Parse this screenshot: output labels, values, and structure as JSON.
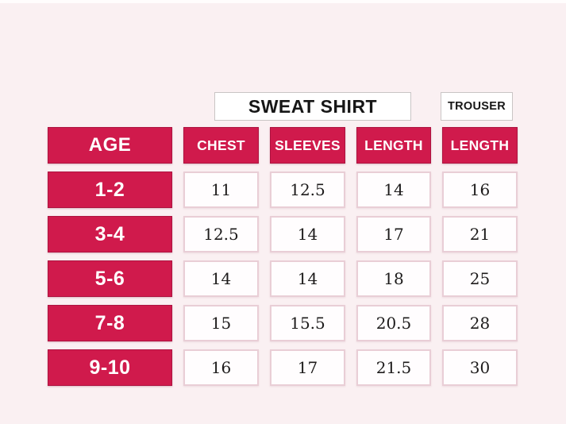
{
  "colors": {
    "background": "#faf0f2",
    "accent": "#d01a4c",
    "accent_border": "#ad1340",
    "value_cell_bg": "#fffdfe",
    "value_cell_border": "#e9ced6",
    "title_box_border": "#c9c5c5",
    "title_text": "#161616",
    "value_text": "#1d1b1b"
  },
  "titles": {
    "sweatshirt": "SWEAT SHIRT",
    "trouser": "TROUSER"
  },
  "table": {
    "headers": [
      "AGE",
      "CHEST",
      "SLEEVES",
      "LENGTH",
      "LENGTH"
    ],
    "rows": [
      {
        "age": "1-2",
        "values": [
          "11",
          "12.5",
          "14",
          "16"
        ]
      },
      {
        "age": "3-4",
        "values": [
          "12.5",
          "14",
          "17",
          "21"
        ]
      },
      {
        "age": "5-6",
        "values": [
          "14",
          "14",
          "18",
          "25"
        ]
      },
      {
        "age": "7-8",
        "values": [
          "15",
          "15.5",
          "20.5",
          "28"
        ]
      },
      {
        "age": "9-10",
        "values": [
          "16",
          "17",
          "21.5",
          "30"
        ]
      }
    ]
  },
  "chart_data": {
    "type": "table",
    "column_groups": [
      {
        "label": "SWEAT SHIRT",
        "columns": [
          "CHEST",
          "SLEEVES",
          "LENGTH"
        ]
      },
      {
        "label": "TROUSER",
        "columns": [
          "LENGTH"
        ]
      }
    ],
    "columns": [
      "AGE",
      "CHEST",
      "SLEEVES",
      "LENGTH",
      "LENGTH"
    ],
    "rows": [
      [
        "1-2",
        11,
        12.5,
        14,
        16
      ],
      [
        "3-4",
        12.5,
        14,
        17,
        21
      ],
      [
        "5-6",
        14,
        14,
        18,
        25
      ],
      [
        "7-8",
        15,
        15.5,
        20.5,
        28
      ],
      [
        "9-10",
        16,
        17,
        21.5,
        30
      ]
    ],
    "legend_position": "none",
    "grid": false
  }
}
